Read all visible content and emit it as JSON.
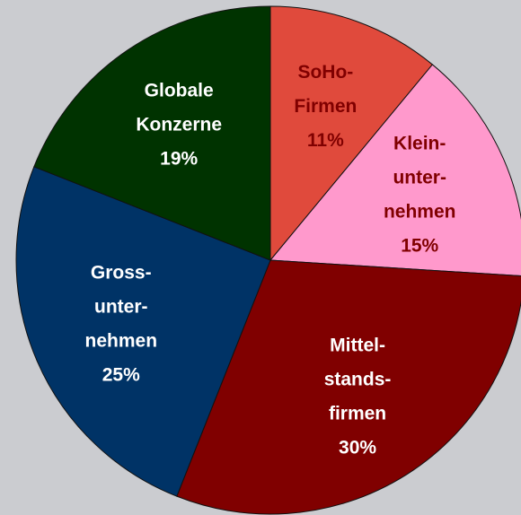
{
  "chart_data": {
    "type": "pie",
    "categories": [
      [
        "SoHo-",
        "Firmen"
      ],
      [
        "Klein-",
        "unter-",
        "nehmen"
      ],
      [
        "Mittel-",
        "stands-",
        "firmen"
      ],
      [
        "Gross-",
        "unter-",
        "nehmen"
      ],
      [
        "Globale",
        "Konzerne"
      ]
    ],
    "values": [
      11,
      15,
      30,
      25,
      19
    ],
    "value_labels": [
      "11%",
      "15%",
      "30%",
      "25%",
      "19%"
    ],
    "colors": [
      "#e04a3c",
      "#ff99cc",
      "#800000",
      "#003366",
      "#003300"
    ],
    "label_colors": [
      "#800000",
      "#800000",
      "#ffffff",
      "#ffffff",
      "#ffffff"
    ]
  }
}
